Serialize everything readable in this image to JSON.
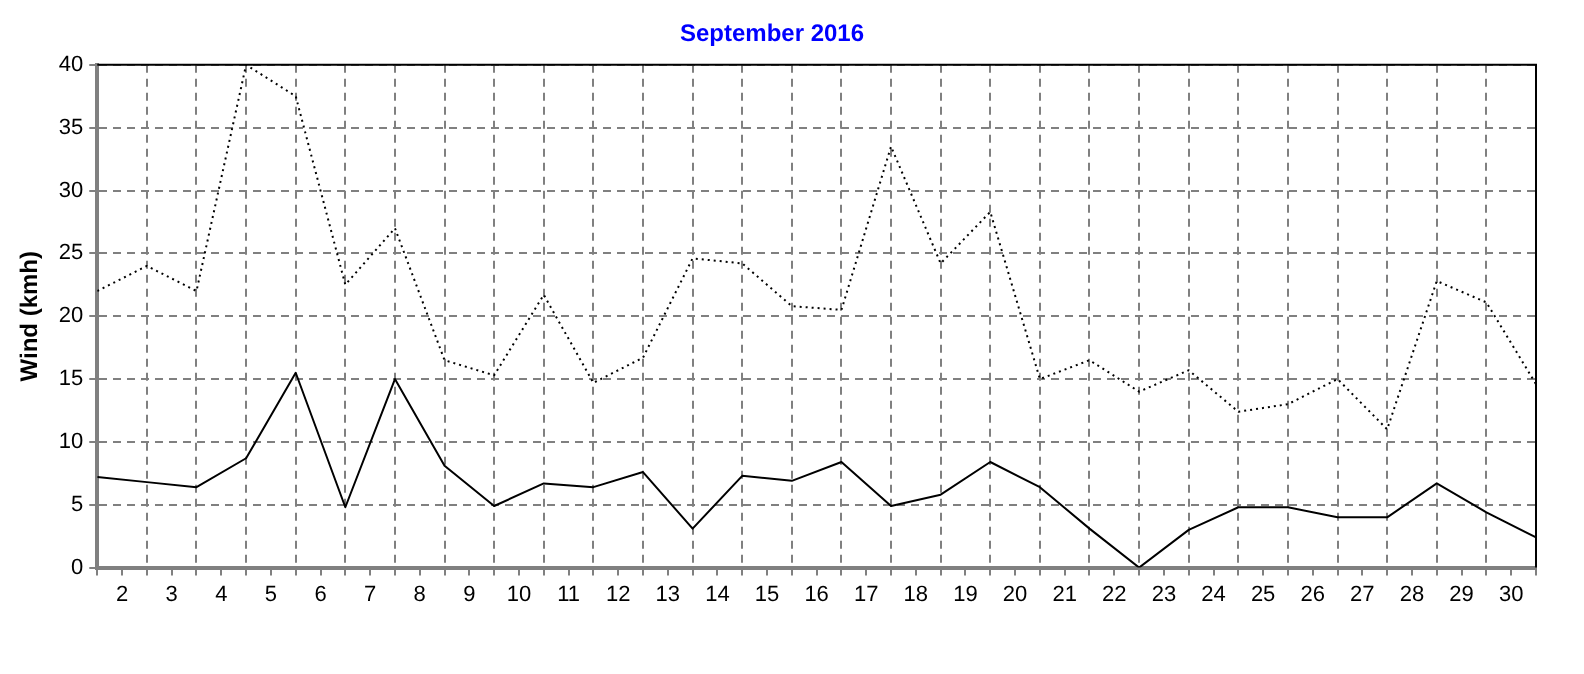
{
  "chart_data": {
    "type": "line",
    "title": "September 2016",
    "ylabel": "Wind (kmh)",
    "x": [
      1.5,
      2.5,
      3.5,
      4.5,
      5.5,
      6.5,
      7.5,
      8.5,
      9.5,
      10.5,
      11.5,
      12.5,
      13.5,
      14.5,
      15.5,
      16.5,
      17.5,
      18.5,
      19.5,
      20.5,
      21.5,
      22.5,
      23.5,
      24.5,
      25.5,
      26.5,
      27.5,
      28.5,
      29.5,
      30.5
    ],
    "series": [
      {
        "color": "#000000",
        "line_style": "dotted",
        "values": [
          22,
          24,
          22,
          40,
          37.5,
          22.5,
          27,
          16.5,
          15.3,
          21.7,
          14.7,
          16.7,
          24.6,
          24.2,
          20.8,
          20.5,
          33.5,
          24.2,
          28.3,
          15,
          16.5,
          14,
          15.7,
          12.4,
          13,
          15,
          11,
          22.8,
          21.1,
          14.6
        ]
      },
      {
        "color": "#000000",
        "line_style": "solid",
        "values": [
          7.2,
          6.8,
          6.4,
          8.7,
          15.5,
          4.8,
          15,
          8.1,
          4.9,
          6.7,
          6.4,
          7.6,
          3.1,
          7.3,
          6.9,
          8.4,
          4.9,
          5.8,
          8.4,
          6.4,
          3.1,
          0,
          3,
          4.8,
          4.8,
          4,
          4,
          6.7,
          4.4,
          2.4
        ]
      }
    ],
    "xlim": [
      1.5,
      30.5
    ],
    "xticks": [
      {
        "value": 1.5,
        "label": null
      },
      2,
      {
        "value": 2.5,
        "label": null
      },
      3,
      {
        "value": 3.5,
        "label": null
      },
      4,
      {
        "value": 4.5,
        "label": null
      },
      5,
      {
        "value": 5.5,
        "label": null
      },
      6,
      {
        "value": 6.5,
        "label": null
      },
      7,
      {
        "value": 7.5,
        "label": null
      },
      8,
      {
        "value": 8.5,
        "label": null
      },
      9,
      {
        "value": 9.5,
        "label": null
      },
      10,
      {
        "value": 10.5,
        "label": null
      },
      11,
      {
        "value": 11.5,
        "label": null
      },
      12,
      {
        "value": 12.5,
        "label": null
      },
      13,
      {
        "value": 13.5,
        "label": null
      },
      14,
      {
        "value": 14.5,
        "label": null
      },
      15,
      {
        "value": 15.5,
        "label": null
      },
      16,
      {
        "value": 16.5,
        "label": null
      },
      17,
      {
        "value": 17.5,
        "label": null
      },
      18,
      {
        "value": 18.5,
        "label": null
      },
      19,
      {
        "value": 19.5,
        "label": null
      },
      20,
      {
        "value": 20.5,
        "label": null
      },
      21,
      {
        "value": 21.5,
        "label": null
      },
      22,
      {
        "value": 22.5,
        "label": null
      },
      23,
      {
        "value": 23.5,
        "label": null
      },
      24,
      {
        "value": 24.5,
        "label": null
      },
      25,
      {
        "value": 25.5,
        "label": null
      },
      26,
      {
        "value": 26.5,
        "label": null
      },
      27,
      {
        "value": 27.5,
        "label": null
      },
      28,
      {
        "value": 28.5,
        "label": null
      },
      29,
      {
        "value": 29.5,
        "label": null
      },
      30,
      {
        "value": 30.5,
        "label": null
      }
    ],
    "ylim": [
      0,
      40
    ],
    "yticks": [
      0,
      5,
      10,
      15,
      20,
      25,
      30,
      35,
      40
    ],
    "grid": true,
    "legend": false,
    "marker": "none"
  }
}
